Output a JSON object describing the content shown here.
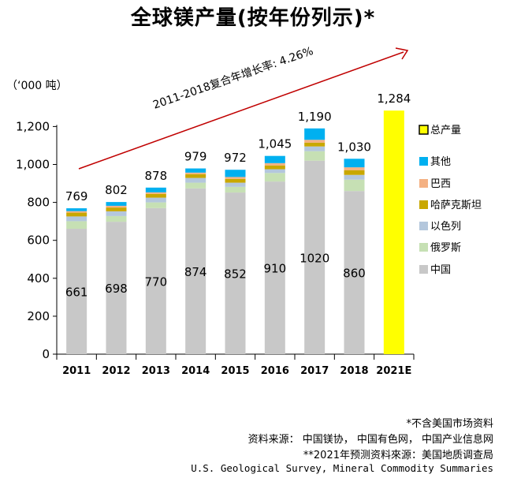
{
  "title": "全球镁产量(按年份列示)*",
  "unit_label": "（‘000 吨）",
  "growth_annotation": "2011-2018复合年增长率: 4.26%",
  "notes": {
    "note1": "*不含美国市场资料",
    "note2": "资料来源： 中国镁协， 中国有色网， 中国产业信息网",
    "note3": "**2021年预测资料來源：美国地质调查局",
    "note4": "U.S. Geological Survey, Mineral Commodity Summaries"
  },
  "colors": {
    "中国": "#c8c8c8",
    "俄罗斯": "#c6e0b4",
    "以色列": "#b4c7dc",
    "哈萨克斯坦": "#c9a800",
    "巴西": "#f4b183",
    "其他": "#00b0f0",
    "总产量": "#ffff00",
    "arrow": "#c00000"
  },
  "chart_data": {
    "type": "bar",
    "stacked": true,
    "categories": [
      "2011",
      "2012",
      "2013",
      "2014",
      "2015",
      "2016",
      "2017",
      "2018",
      "2021E"
    ],
    "ylim": [
      0,
      1300
    ],
    "yticks": [
      0,
      200,
      400,
      600,
      800,
      1000,
      1200
    ],
    "ytick_labels": [
      "0",
      "200",
      "400",
      "600",
      "800",
      "1,000",
      "1,200"
    ],
    "grid": false,
    "legend_position": "right",
    "series": [
      {
        "name": "中国",
        "values": [
          661,
          698,
          770,
          874,
          852,
          910,
          1020,
          860,
          null
        ]
      },
      {
        "name": "俄罗斯",
        "values": [
          40,
          30,
          30,
          30,
          30,
          45,
          50,
          60,
          null
        ]
      },
      {
        "name": "以色列",
        "values": [
          25,
          25,
          25,
          25,
          22,
          20,
          25,
          25,
          null
        ]
      },
      {
        "name": "哈萨克斯坦",
        "values": [
          20,
          20,
          20,
          20,
          20,
          20,
          20,
          25,
          null
        ]
      },
      {
        "name": "巴西",
        "values": [
          8,
          9,
          8,
          8,
          10,
          12,
          15,
          15,
          null
        ]
      },
      {
        "name": "其他",
        "values": [
          15,
          20,
          25,
          22,
          38,
          38,
          60,
          45,
          null
        ]
      },
      {
        "name": "总产量",
        "values": [
          null,
          null,
          null,
          null,
          null,
          null,
          null,
          null,
          1284
        ]
      }
    ],
    "totals": [
      769,
      802,
      878,
      979,
      972,
      1045,
      1190,
      1030,
      1284
    ],
    "total_labels": [
      "769",
      "802",
      "878",
      "979",
      "972",
      "1,045",
      "1,190",
      "1,030",
      "1,284"
    ],
    "china_labels": [
      "661",
      "698",
      "770",
      "874",
      "852",
      "910",
      "1020",
      "860",
      ""
    ],
    "legend": [
      "总产量",
      "其他",
      "巴西",
      "哈萨克斯坦",
      "以色列",
      "俄罗斯",
      "中国"
    ]
  }
}
